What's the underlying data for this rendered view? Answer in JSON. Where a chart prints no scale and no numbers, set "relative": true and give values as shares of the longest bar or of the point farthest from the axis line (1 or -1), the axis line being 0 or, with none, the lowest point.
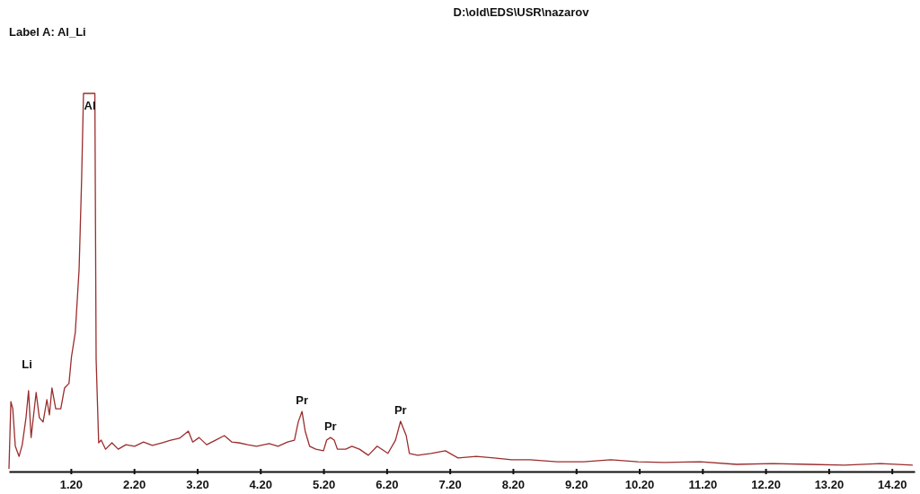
{
  "chart_data": {
    "type": "line",
    "title": "D:\\old\\EDS\\USR\\nazarov",
    "subtitle": "Label A: Al_Li",
    "relative": true,
    "grid": false,
    "marker": "none",
    "line_style": "solid",
    "xlim": [
      0.22,
      14.56
    ],
    "xticks": [
      {
        "value": 1.2,
        "label": "1.20"
      },
      {
        "value": 2.2,
        "label": "2.20"
      },
      {
        "value": 3.2,
        "label": "3.20"
      },
      {
        "value": 4.2,
        "label": "4.20"
      },
      {
        "value": 5.2,
        "label": "5.20"
      },
      {
        "value": 6.2,
        "label": "6.20"
      },
      {
        "value": 7.2,
        "label": "7.20"
      },
      {
        "value": 8.2,
        "label": "8.20"
      },
      {
        "value": 9.2,
        "label": "9.20"
      },
      {
        "value": 10.2,
        "label": "10.20"
      },
      {
        "value": 11.2,
        "label": "11.20"
      },
      {
        "value": 12.2,
        "label": "12.20"
      },
      {
        "value": 13.2,
        "label": "13.20"
      },
      {
        "value": 14.2,
        "label": "14.20"
      }
    ],
    "annotations": [
      "Li",
      "Al",
      {
        "text": "Pr",
        "x": 4.86,
        "y": 0.159
      },
      {
        "text": "Pr",
        "x": 5.31,
        "y": 0.09
      },
      {
        "text": "Pr",
        "x": 6.42,
        "y": 0.133
      }
    ],
    "series": [
      {
        "color": "#9b2d2d",
        "x": [
          0.22,
          0.25,
          0.28,
          0.32,
          0.38,
          0.43,
          0.49,
          0.53,
          0.57,
          0.65,
          0.7,
          0.76,
          0.82,
          0.86,
          0.9,
          0.96,
          1.04,
          1.1,
          1.17,
          1.21,
          1.27,
          1.33,
          1.37,
          1.4,
          1.58,
          1.6,
          1.64,
          1.68,
          1.75,
          1.85,
          1.95,
          2.07,
          2.21,
          2.35,
          2.49,
          2.64,
          2.78,
          2.92,
          3.06,
          3.13,
          3.23,
          3.35,
          3.49,
          3.63,
          3.75,
          3.86,
          4.0,
          4.14,
          4.34,
          4.48,
          4.63,
          4.74,
          4.8,
          4.86,
          4.91,
          4.98,
          5.08,
          5.2,
          5.25,
          5.31,
          5.37,
          5.42,
          5.55,
          5.65,
          5.77,
          5.91,
          6.05,
          6.22,
          6.34,
          6.42,
          6.51,
          6.56,
          6.69,
          6.9,
          7.13,
          7.33,
          7.62,
          7.9,
          8.18,
          8.47,
          8.9,
          9.32,
          9.75,
          10.18,
          10.6,
          11.17,
          11.74,
          12.31,
          12.88,
          13.45,
          14.02,
          14.53
        ],
        "values": [
          0.007,
          0.185,
          0.166,
          0.067,
          0.04,
          0.071,
          0.143,
          0.214,
          0.09,
          0.209,
          0.143,
          0.131,
          0.19,
          0.15,
          0.221,
          0.166,
          0.166,
          0.221,
          0.233,
          0.304,
          0.368,
          0.534,
          0.772,
          1,
          1,
          0.297,
          0.076,
          0.083,
          0.059,
          0.076,
          0.059,
          0.071,
          0.067,
          0.078,
          0.069,
          0.076,
          0.083,
          0.088,
          0.107,
          0.078,
          0.09,
          0.071,
          0.083,
          0.095,
          0.078,
          0.076,
          0.071,
          0.067,
          0.074,
          0.067,
          0.078,
          0.083,
          0.131,
          0.159,
          0.107,
          0.067,
          0.059,
          0.055,
          0.083,
          0.09,
          0.083,
          0.059,
          0.059,
          0.067,
          0.059,
          0.043,
          0.067,
          0.048,
          0.083,
          0.133,
          0.095,
          0.048,
          0.043,
          0.048,
          0.055,
          0.036,
          0.04,
          0.036,
          0.031,
          0.031,
          0.026,
          0.026,
          0.031,
          0.026,
          0.024,
          0.026,
          0.019,
          0.021,
          0.019,
          0.017,
          0.021,
          0.017
        ]
      }
    ]
  }
}
